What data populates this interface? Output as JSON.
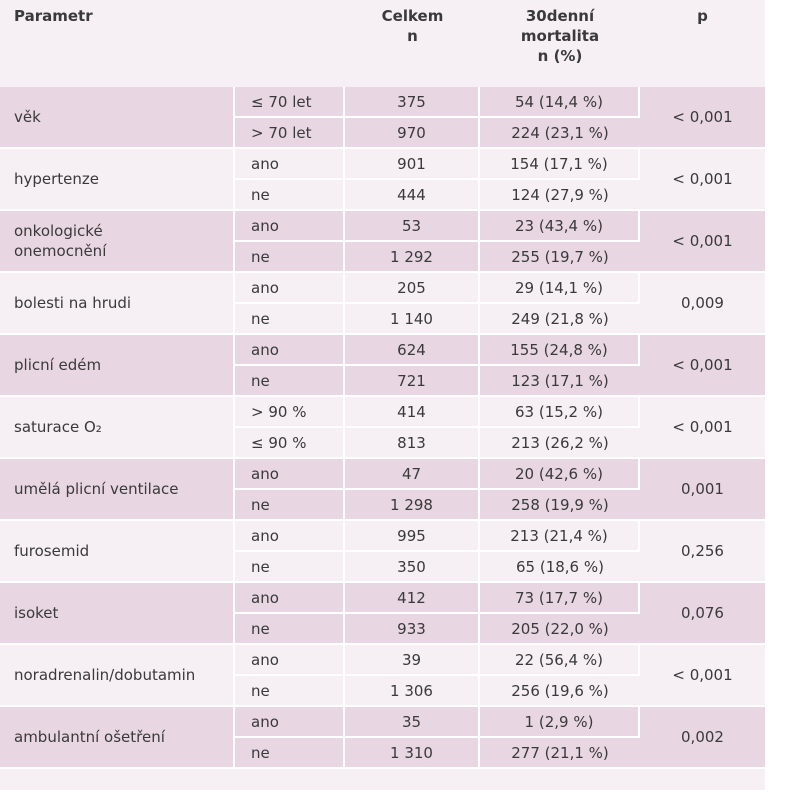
{
  "table": {
    "header": [
      [
        "Parametr"
      ],
      [],
      [
        "Celkem",
        "n"
      ],
      [
        "30denní",
        "mortalita",
        "n (%)"
      ],
      [
        "p"
      ]
    ],
    "groups": [
      {
        "param": [
          "věk"
        ],
        "p": "< 0,001",
        "rows": [
          [
            "≤ 70 let",
            "375",
            "54 (14,4 %)"
          ],
          [
            "> 70 let",
            "970",
            "224 (23,1 %)"
          ]
        ]
      },
      {
        "param": [
          "hypertenze"
        ],
        "p": "< 0,001",
        "rows": [
          [
            "ano",
            "901",
            "154 (17,1 %)"
          ],
          [
            "ne",
            "444",
            "124 (27,9 %)"
          ]
        ]
      },
      {
        "param": [
          "onkologické",
          "onemocnění"
        ],
        "p": "< 0,001",
        "rows": [
          [
            "ano",
            "53",
            "23 (43,4 %)"
          ],
          [
            "ne",
            "1 292",
            "255 (19,7 %)"
          ]
        ]
      },
      {
        "param": [
          "bolesti na hrudi"
        ],
        "p": "0,009",
        "rows": [
          [
            "ano",
            "205",
            "29 (14,1 %)"
          ],
          [
            "ne",
            "1 140",
            "249 (21,8 %)"
          ]
        ]
      },
      {
        "param": [
          "plicní edém"
        ],
        "p": "< 0,001",
        "rows": [
          [
            "ano",
            "624",
            "155 (24,8 %)"
          ],
          [
            "ne",
            "721",
            "123 (17,1 %)"
          ]
        ]
      },
      {
        "param": [
          "saturace O₂"
        ],
        "p": "< 0,001",
        "rows": [
          [
            "> 90 %",
            "414",
            "63 (15,2 %)"
          ],
          [
            "≤ 90 %",
            "813",
            "213 (26,2 %)"
          ]
        ]
      },
      {
        "param": [
          "umělá plicní ventilace"
        ],
        "p": "0,001",
        "rows": [
          [
            "ano",
            "47",
            "20 (42,6 %)"
          ],
          [
            "ne",
            "1 298",
            "258 (19,9 %)"
          ]
        ]
      },
      {
        "param": [
          "furosemid"
        ],
        "p": "0,256",
        "rows": [
          [
            "ano",
            "995",
            "213 (21,4 %)"
          ],
          [
            "ne",
            "350",
            "65 (18,6 %)"
          ]
        ]
      },
      {
        "param": [
          "isoket"
        ],
        "p": "0,076",
        "rows": [
          [
            "ano",
            "412",
            "73 (17,7 %)"
          ],
          [
            "ne",
            "933",
            "205 (22,0 %)"
          ]
        ]
      },
      {
        "param": [
          "noradrenalin/dobutamin"
        ],
        "p": "< 0,001",
        "rows": [
          [
            "ano",
            "39",
            "22 (56,4 %)"
          ],
          [
            "ne",
            "1 306",
            "256 (19,6 %)"
          ]
        ]
      },
      {
        "param": [
          "ambulantní ošetření"
        ],
        "p": "0,002",
        "rows": [
          [
            "ano",
            "35",
            "1 (2,9 %)"
          ],
          [
            "ne",
            "1 310",
            "277 (21,1 %)"
          ]
        ]
      }
    ]
  }
}
